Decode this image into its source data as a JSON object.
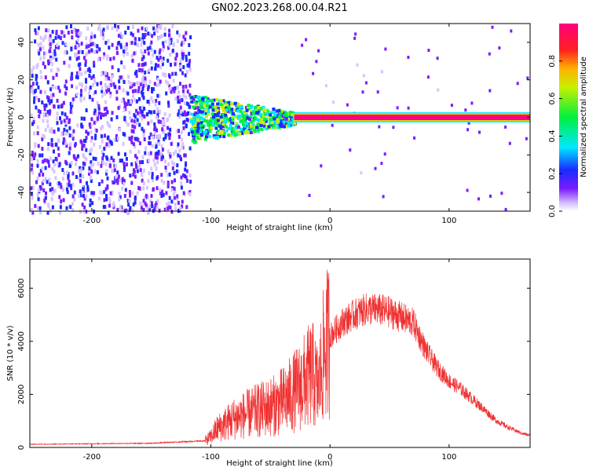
{
  "title": "GN02.2023.268.00.04.R21",
  "colors": {
    "snr_line": "#f03030",
    "axis": "#000000"
  },
  "chart_data": [
    {
      "type": "heatmap",
      "xlabel": "Height of straight line (km)",
      "ylabel": "Frequency (Hz)",
      "xlim": [
        -252,
        168
      ],
      "ylim": [
        -50,
        50
      ],
      "x_ticks": [
        -200,
        -100,
        0,
        100
      ],
      "y_ticks": [
        -40,
        -20,
        0,
        20,
        40
      ],
      "colorbar": {
        "label": "Normalized spectral amplitude",
        "range": [
          0,
          1
        ],
        "ticks": [
          "0.0",
          "0.2",
          "0.4",
          "0.6",
          "0.8"
        ],
        "colormap": "rainbow (white-violet-blue-cyan-green-yellow-orange-red-magenta)"
      },
      "description_values": [
        {
          "x_range": [
            -252,
            -118
          ],
          "freq_range": [
            -50,
            50
          ],
          "amplitude": [
            0.0,
            0.2
          ]
        },
        {
          "x_range": [
            -118,
            -30
          ],
          "freq_range": [
            -13,
            13
          ],
          "amplitude": [
            0.1,
            0.6
          ]
        },
        {
          "x_range": [
            -30,
            168
          ],
          "freq_range": [
            -1.5,
            1.5
          ],
          "amplitude": [
            0.8,
            1.0
          ]
        }
      ]
    },
    {
      "type": "line",
      "xlabel": "Height of straight line (km)",
      "ylabel": "SNR (10 * v/v)",
      "xlim": [
        -252,
        168
      ],
      "ylim": [
        0,
        7100
      ],
      "x_ticks": [
        -200,
        -100,
        0,
        100
      ],
      "y_ticks": [
        0,
        2000,
        4000,
        6000
      ],
      "envelope": {
        "x": [
          -252,
          -200,
          -150,
          -105,
          -100,
          -95,
          -80,
          -60,
          -45,
          -35,
          -25,
          -15,
          -10,
          -5,
          0,
          10,
          20,
          30,
          40,
          50,
          60,
          70,
          75,
          80,
          90,
          100,
          110,
          120,
          130,
          140,
          150,
          160,
          168
        ],
        "y": [
          120,
          140,
          160,
          250,
          400,
          700,
          1100,
          1400,
          1600,
          1900,
          2300,
          2800,
          2200,
          3600,
          4200,
          4700,
          5000,
          5200,
          5200,
          5100,
          4900,
          4700,
          4200,
          3700,
          3000,
          2500,
          2200,
          1800,
          1400,
          1000,
          750,
          550,
          450
        ]
      }
    }
  ]
}
